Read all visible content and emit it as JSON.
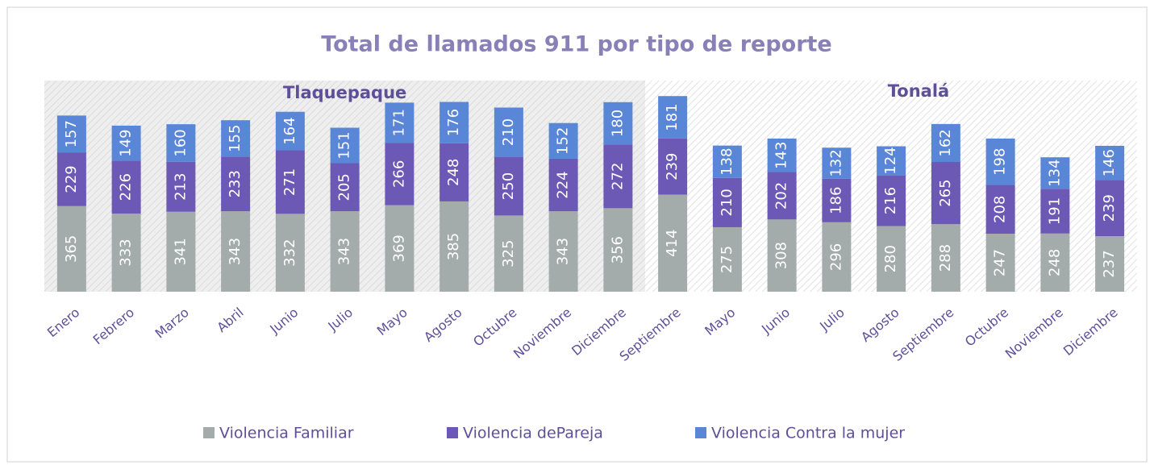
{
  "chart_data": {
    "type": "stacked_bar",
    "title": "Total de llamados 911 por tipo de reporte",
    "group_labels": [
      "Tlaquepaque",
      "Tonalá"
    ],
    "categories": [
      "Enero",
      "Febrero",
      "Marzo",
      "Abril",
      "Junio",
      "Julio",
      "Mayo",
      "Agosto",
      "Octubre",
      "Noviembre",
      "Diciembre",
      "Septiembre",
      "Mayo",
      "Junio",
      "Julio",
      "Agosto",
      "Septiembre",
      "Octubre",
      "Noviembre",
      "Diciembre"
    ],
    "series": [
      {
        "name": "Violencia Familiar",
        "color": "#a4abab",
        "values": [
          365,
          333,
          341,
          343,
          332,
          343,
          369,
          385,
          325,
          343,
          356,
          414,
          275,
          308,
          296,
          280,
          288,
          247,
          248,
          237
        ]
      },
      {
        "name": "Violencia dePareja",
        "color": "#6c58b5",
        "values": [
          229,
          226,
          213,
          233,
          271,
          205,
          266,
          248,
          250,
          224,
          272,
          239,
          210,
          202,
          186,
          216,
          265,
          208,
          191,
          239
        ]
      },
      {
        "name": "Violencia Contra la mujer",
        "color": "#5a86d8",
        "values": [
          157,
          149,
          160,
          155,
          164,
          151,
          171,
          176,
          210,
          152,
          180,
          181,
          138,
          143,
          132,
          124,
          162,
          198,
          134,
          146
        ]
      }
    ],
    "ylim": [
      0,
      900
    ],
    "legend": "bottom"
  }
}
